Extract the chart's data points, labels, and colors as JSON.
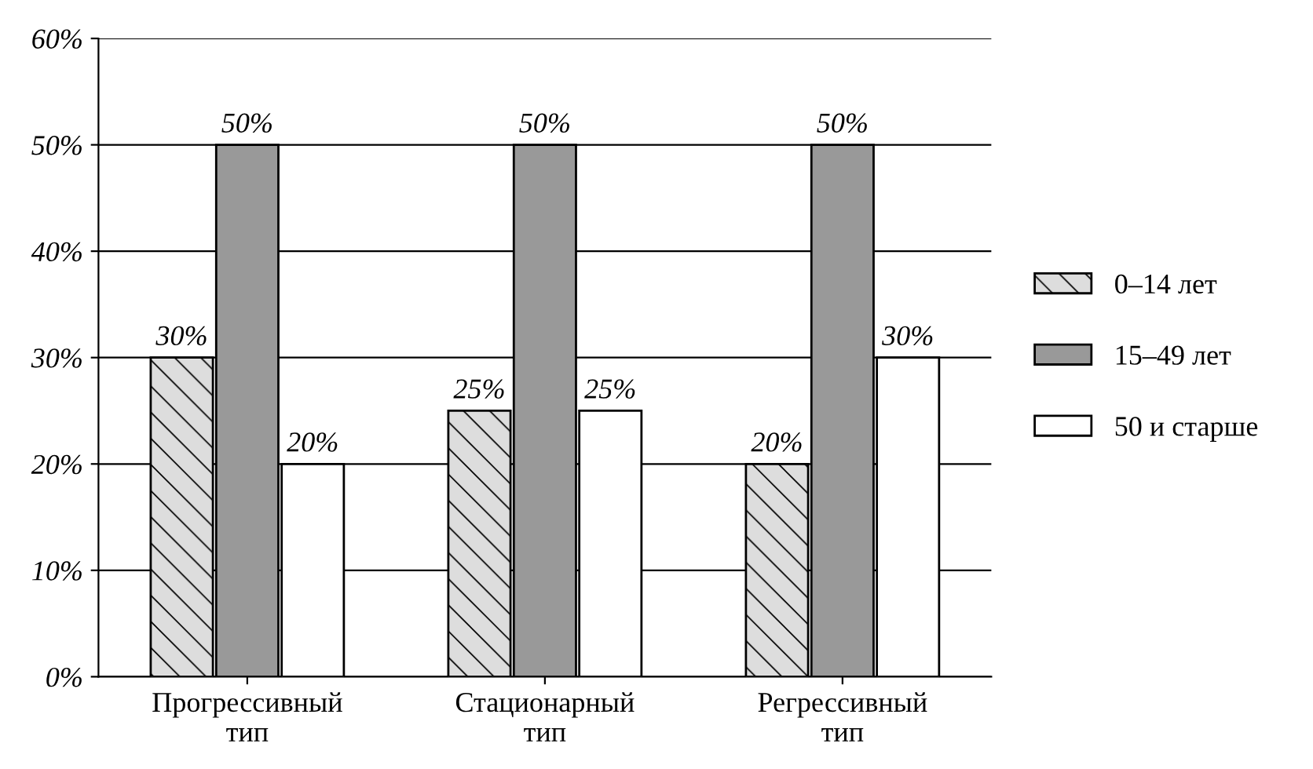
{
  "chart_data": {
    "type": "bar",
    "categories": [
      "Прогрессивный\nтип",
      "Стационарный\nтип",
      "Регрессивный\nтип"
    ],
    "series": [
      {
        "name": "0–14 лет",
        "color": "#dddddd",
        "values": [
          30,
          25,
          20
        ],
        "value_labels": [
          "30%",
          "25%",
          "20%"
        ]
      },
      {
        "name": "15–49 лет",
        "color": "#999999",
        "values": [
          50,
          50,
          50
        ],
        "value_labels": [
          "50%",
          "50%",
          "50%"
        ]
      },
      {
        "name": "50 и старше",
        "color": "#ffffff",
        "values": [
          20,
          25,
          30
        ],
        "value_labels": [
          "20%",
          "25%",
          "30%"
        ]
      }
    ],
    "ylim": [
      0,
      60
    ],
    "yticks": [
      {
        "value": 0,
        "label": "0%"
      },
      {
        "value": 10,
        "label": "10%"
      },
      {
        "value": 20,
        "label": "20%"
      },
      {
        "value": 30,
        "label": "30%"
      },
      {
        "value": 40,
        "label": "40%"
      },
      {
        "value": 50,
        "label": "50%"
      },
      {
        "value": 60,
        "label": "60%"
      }
    ],
    "grid": "y",
    "legend": "right"
  }
}
